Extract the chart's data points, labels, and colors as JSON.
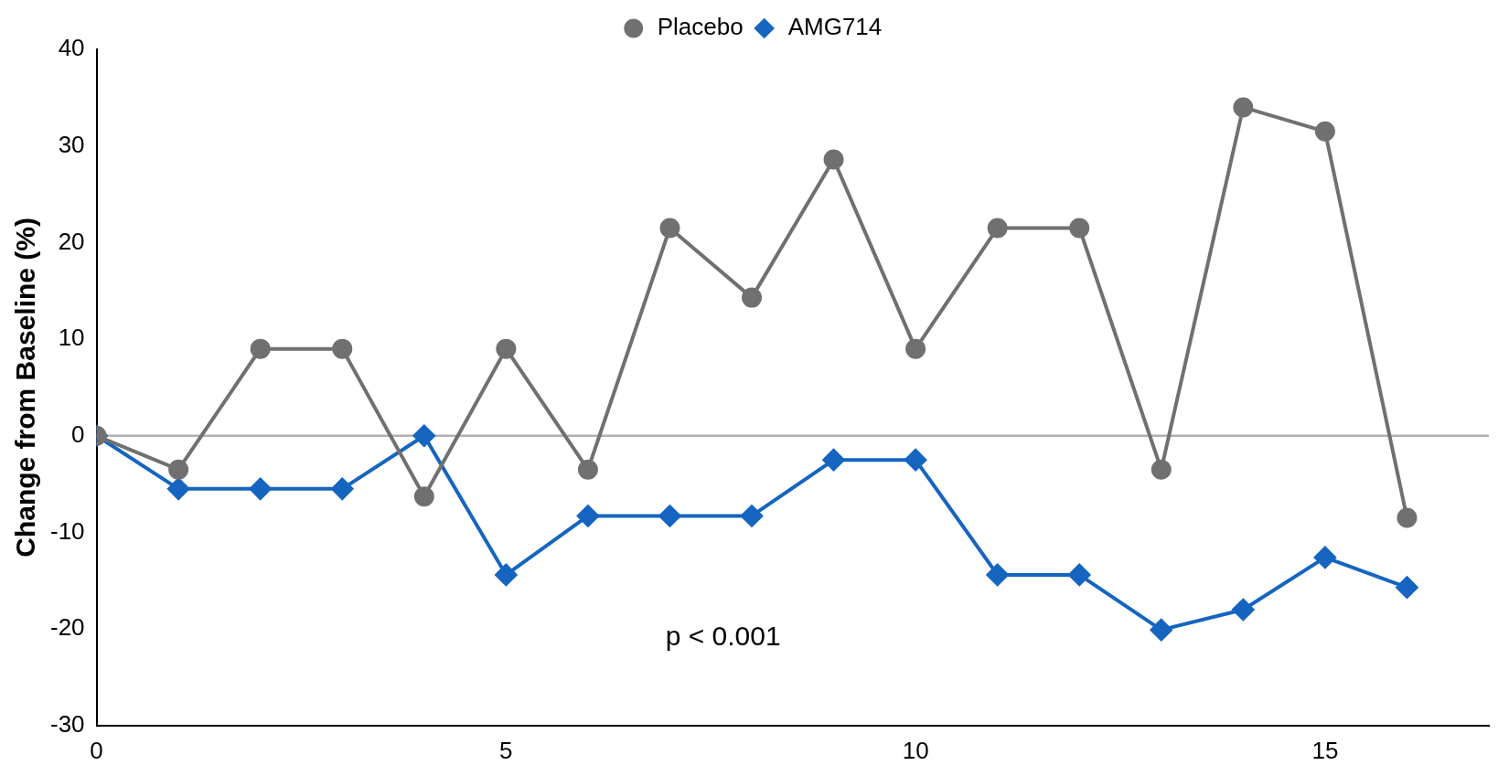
{
  "chart_data": {
    "type": "line",
    "ylabel": "Change from Baseline (%)",
    "x": [
      0,
      1,
      2,
      3,
      4,
      5,
      6,
      7,
      8,
      9,
      10,
      11,
      12,
      13,
      14,
      15,
      16
    ],
    "series": [
      {
        "name": "Placebo",
        "color": "#707070",
        "marker": "circle",
        "values": [
          0,
          -3.5,
          9,
          9,
          -6.3,
          9,
          -3.5,
          21.5,
          14.3,
          28.6,
          9,
          21.5,
          21.5,
          -3.5,
          34,
          31.5,
          -8.5
        ]
      },
      {
        "name": "AMG714",
        "color": "#1565c0",
        "marker": "diamond",
        "values": [
          0,
          -5.5,
          -5.5,
          -5.5,
          0,
          -14.4,
          -8.3,
          -8.3,
          -8.3,
          -2.5,
          -2.5,
          -14.4,
          -14.4,
          -20.1,
          -18,
          -12.6,
          -15.7
        ]
      }
    ],
    "xlim": [
      0,
      17
    ],
    "xticks": [
      0,
      5,
      10,
      15
    ],
    "ylim": [
      -30,
      40
    ],
    "yticks": [
      -30,
      -20,
      -10,
      0,
      10,
      20,
      30,
      40
    ],
    "ref_lines": [
      {
        "axis": "y",
        "value": 0,
        "color": "#b0b0b0"
      }
    ],
    "annotations": [
      "p < 0.001"
    ],
    "legend": "top",
    "grid": false,
    "line_style": "solid"
  }
}
